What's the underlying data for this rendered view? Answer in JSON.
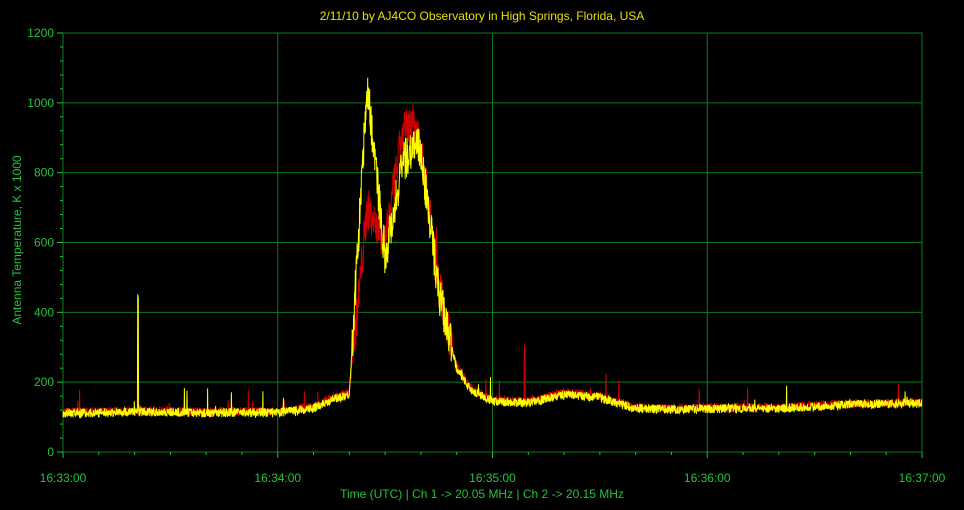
{
  "chart_data": {
    "type": "line",
    "title": "2/11/10  by  AJ4CO Observatory  in  High Springs, Florida, USA",
    "xlabel": "Time (UTC)  |  Ch 1 -> 20.05 MHz  |  Ch 2 -> 20.15 MHz",
    "ylabel": "Antenna Temperature, K x 1000",
    "xlim": [
      "16:33:00",
      "16:37:00"
    ],
    "ylim": [
      0,
      1200
    ],
    "grid": true,
    "x_ticks": [
      "16:33:00",
      "16:34:00",
      "16:35:00",
      "16:36:00",
      "16:37:00"
    ],
    "y_ticks": [
      0,
      200,
      400,
      600,
      800,
      1000,
      1200
    ],
    "colors": {
      "ch1": "#d00000",
      "ch2": "#ffff00",
      "grid": "#0b7a1a",
      "axis_text": "#22c33a",
      "title": "#e8e000"
    },
    "series": [
      {
        "name": "Ch 1",
        "x": [
          "16:33:00",
          "16:33:10",
          "16:33:20",
          "16:33:30",
          "16:33:40",
          "16:33:50",
          "16:34:00",
          "16:34:10",
          "16:34:15",
          "16:34:20",
          "16:34:25",
          "16:34:30",
          "16:34:35",
          "16:34:38",
          "16:34:40",
          "16:34:42",
          "16:34:45",
          "16:34:48",
          "16:34:50",
          "16:34:53",
          "16:34:55",
          "16:35:00",
          "16:35:10",
          "16:35:20",
          "16:35:30",
          "16:35:40",
          "16:35:50",
          "16:36:00",
          "16:36:10",
          "16:36:20",
          "16:36:30",
          "16:36:40",
          "16:36:50",
          "16:37:00"
        ],
        "values": [
          115,
          115,
          118,
          117,
          115,
          116,
          115,
          130,
          155,
          170,
          700,
          600,
          920,
          940,
          900,
          720,
          480,
          330,
          250,
          195,
          175,
          150,
          145,
          170,
          160,
          128,
          125,
          127,
          128,
          128,
          133,
          140,
          140,
          142
        ]
      },
      {
        "name": "Ch 2",
        "x": [
          "16:33:00",
          "16:33:10",
          "16:33:20",
          "16:33:30",
          "16:33:40",
          "16:33:50",
          "16:34:00",
          "16:34:10",
          "16:34:15",
          "16:34:20",
          "16:34:25",
          "16:34:30",
          "16:34:35",
          "16:34:38",
          "16:34:40",
          "16:34:42",
          "16:34:45",
          "16:34:48",
          "16:34:50",
          "16:34:53",
          "16:34:55",
          "16:35:00",
          "16:35:10",
          "16:35:20",
          "16:35:30",
          "16:35:40",
          "16:35:50",
          "16:36:00",
          "16:36:10",
          "16:36:20",
          "16:36:30",
          "16:36:40",
          "16:36:50",
          "16:37:00"
        ],
        "values": [
          112,
          112,
          115,
          114,
          112,
          113,
          112,
          125,
          150,
          165,
          1050,
          560,
          830,
          880,
          860,
          700,
          460,
          320,
          240,
          190,
          170,
          145,
          140,
          165,
          155,
          125,
          122,
          124,
          125,
          125,
          130,
          136,
          137,
          139
        ]
      }
    ],
    "annotations": [
      {
        "series": "Ch 2",
        "x": "16:33:21",
        "value": 440,
        "note": "spike"
      },
      {
        "series": "Ch 1",
        "x": "16:35:09",
        "value": 300,
        "note": "spike"
      }
    ]
  }
}
